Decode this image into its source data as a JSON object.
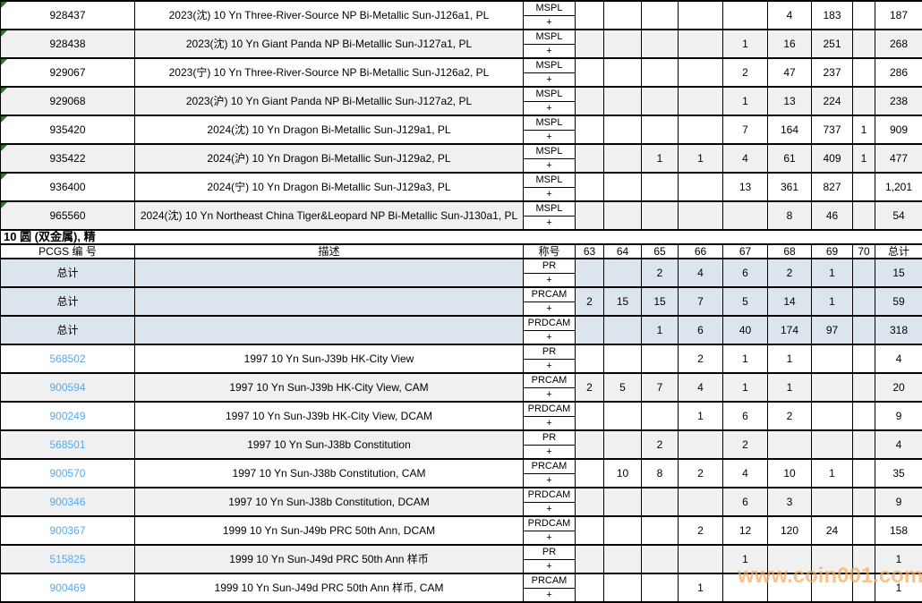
{
  "section_title": "10 圆 (双金属), 精",
  "header": {
    "pcgs": "PCGS 编 号",
    "description": "描述",
    "designation": "称号",
    "grades": [
      "63",
      "64",
      "65",
      "66",
      "67",
      "68",
      "69",
      "70"
    ],
    "total": "总计"
  },
  "ms_section": {
    "rows": [
      {
        "pcgs": "928437",
        "description": "2023(沈) 10 Yn Three-River-Source NP Bi-Metallic Sun-J126a1, PL",
        "designation": "MSPL",
        "plus": "+",
        "grades": [
          "",
          "",
          "",
          "",
          "",
          "4",
          "183",
          ""
        ],
        "total": "187"
      },
      {
        "pcgs": "928438",
        "description": "2023(沈) 10 Yn Giant Panda NP Bi-Metallic Sun-J127a1, PL",
        "designation": "MSPL",
        "plus": "+",
        "grades": [
          "",
          "",
          "",
          "",
          "1",
          "16",
          "251",
          ""
        ],
        "total": "268"
      },
      {
        "pcgs": "929067",
        "description": "2023(宁) 10 Yn Three-River-Source NP Bi-Metallic Sun-J126a2, PL",
        "designation": "MSPL",
        "plus": "+",
        "grades": [
          "",
          "",
          "",
          "",
          "2",
          "47",
          "237",
          ""
        ],
        "total": "286"
      },
      {
        "pcgs": "929068",
        "description": "2023(沪) 10 Yn Giant Panda NP Bi-Metallic Sun-J127a2, PL",
        "designation": "MSPL",
        "plus": "+",
        "grades": [
          "",
          "",
          "",
          "",
          "1",
          "13",
          "224",
          ""
        ],
        "total": "238"
      },
      {
        "pcgs": "935420",
        "description": "2024(沈) 10 Yn Dragon Bi-Metallic Sun-J129a1, PL",
        "designation": "MSPL",
        "plus": "+",
        "grades": [
          "",
          "",
          "",
          "",
          "7",
          "164",
          "737",
          "1"
        ],
        "total": "909"
      },
      {
        "pcgs": "935422",
        "description": "2024(沪) 10 Yn Dragon Bi-Metallic Sun-J129a2, PL",
        "designation": "MSPL",
        "plus": "+",
        "grades": [
          "",
          "",
          "1",
          "1",
          "4",
          "61",
          "409",
          "1"
        ],
        "total": "477"
      },
      {
        "pcgs": "936400",
        "description": "2024(宁) 10 Yn Dragon Bi-Metallic Sun-J129a3, PL",
        "designation": "MSPL",
        "plus": "+",
        "grades": [
          "",
          "",
          "",
          "",
          "13",
          "361",
          "827",
          ""
        ],
        "total": "1,201"
      },
      {
        "pcgs": "965560",
        "description": "2024(沈) 10 Yn Northeast China Tiger&Leopard NP Bi-Metallic Sun-J130a1, PL",
        "designation": "MSPL",
        "plus": "+",
        "grades": [
          "",
          "",
          "",
          "",
          "",
          "8",
          "46",
          ""
        ],
        "total": "54"
      }
    ]
  },
  "proof_section": {
    "totals_rows": [
      {
        "label": "总计",
        "description": "",
        "designation": "PR",
        "plus": "+",
        "grades": [
          "",
          "",
          "2",
          "4",
          "6",
          "2",
          "1",
          ""
        ],
        "total": "15"
      },
      {
        "label": "总计",
        "description": "",
        "designation": "PRCAM",
        "plus": "+",
        "grades": [
          "2",
          "15",
          "15",
          "7",
          "5",
          "14",
          "1",
          ""
        ],
        "total": "59"
      },
      {
        "label": "总计",
        "description": "",
        "designation": "PRDCAM",
        "plus": "+",
        "grades": [
          "",
          "",
          "1",
          "6",
          "40",
          "174",
          "97",
          ""
        ],
        "total": "318"
      }
    ],
    "rows": [
      {
        "pcgs": "568502",
        "description": "1997 10 Yn Sun-J39b HK-City View",
        "designation": "PR",
        "plus": "+",
        "grades": [
          "",
          "",
          "",
          "2",
          "1",
          "1",
          "",
          ""
        ],
        "total": "4"
      },
      {
        "pcgs": "900594",
        "description": "1997 10 Yn Sun-J39b HK-City View, CAM",
        "designation": "PRCAM",
        "plus": "+",
        "grades": [
          "2",
          "5",
          "7",
          "4",
          "1",
          "1",
          "",
          ""
        ],
        "total": "20"
      },
      {
        "pcgs": "900249",
        "description": "1997 10 Yn Sun-J39b HK-City View, DCAM",
        "designation": "PRDCAM",
        "plus": "+",
        "grades": [
          "",
          "",
          "",
          "1",
          "6",
          "2",
          "",
          ""
        ],
        "total": "9"
      },
      {
        "pcgs": "568501",
        "description": "1997 10 Yn Sun-J38b Constitution",
        "designation": "PR",
        "plus": "+",
        "grades": [
          "",
          "",
          "2",
          "",
          "2",
          "",
          "",
          ""
        ],
        "total": "4"
      },
      {
        "pcgs": "900570",
        "description": "1997 10 Yn Sun-J38b Constitution, CAM",
        "designation": "PRCAM",
        "plus": "+",
        "grades": [
          "",
          "10",
          "8",
          "2",
          "4",
          "10",
          "1",
          ""
        ],
        "total": "35"
      },
      {
        "pcgs": "900346",
        "description": "1997 10 Yn Sun-J38b Constitution, DCAM",
        "designation": "PRDCAM",
        "plus": "+",
        "grades": [
          "",
          "",
          "",
          "",
          "6",
          "3",
          "",
          ""
        ],
        "total": "9"
      },
      {
        "pcgs": "900367",
        "description": "1999 10 Yn Sun-J49b PRC 50th Ann, DCAM",
        "designation": "PRDCAM",
        "plus": "+",
        "grades": [
          "",
          "",
          "",
          "2",
          "12",
          "120",
          "24",
          ""
        ],
        "total": "158"
      },
      {
        "pcgs": "515825",
        "description": "1999 10 Yn Sun-J49d PRC 50th Ann 样币",
        "designation": "PR",
        "plus": "+",
        "grades": [
          "",
          "",
          "",
          "",
          "1",
          "",
          "",
          ""
        ],
        "total": "1"
      },
      {
        "pcgs": "900469",
        "description": "1999 10 Yn Sun-J49d PRC 50th Ann 样币, CAM",
        "designation": "PRCAM",
        "plus": "+",
        "grades": [
          "",
          "",
          "",
          "1",
          "",
          "",
          "",
          ""
        ],
        "total": "1"
      }
    ]
  },
  "watermark": {
    "text": "www.coin001.com",
    "color": "rgba(247,170,95,0.85)"
  },
  "colors": {
    "link": "#55a9f5",
    "totals_row_bg": "#dce4ee",
    "alt_row_bg": "#f0f0f0",
    "marker_green": "#1e7e1e",
    "grid": "#000000",
    "watermark": "rgba(247,170,95,0.85)"
  }
}
